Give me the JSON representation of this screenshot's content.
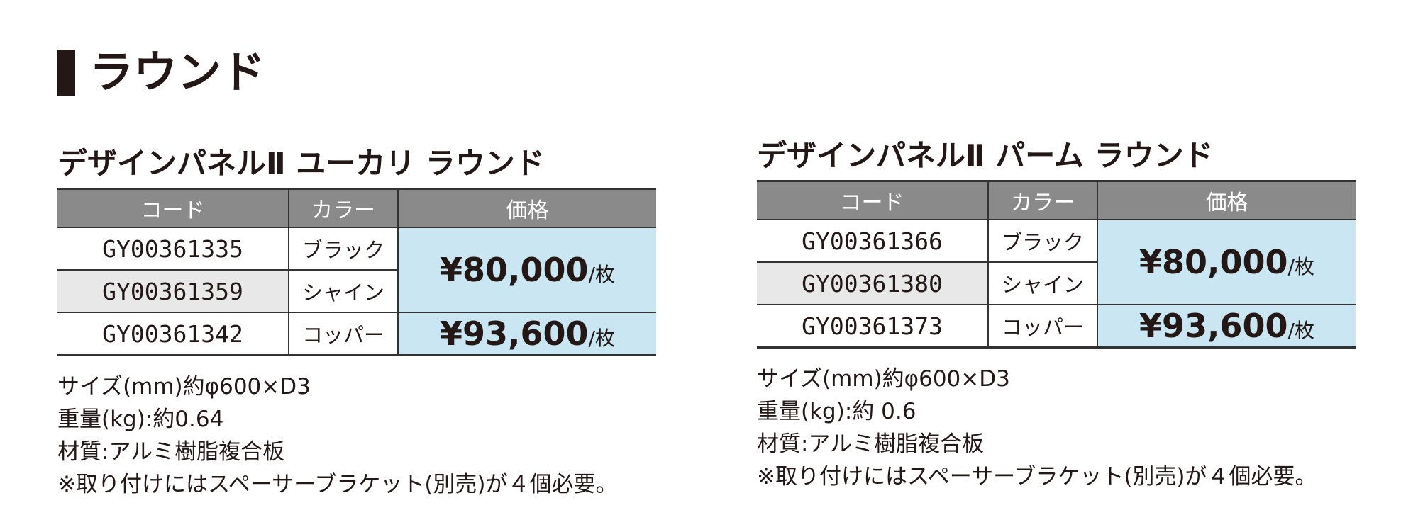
{
  "heading": "ラウンド",
  "products": [
    {
      "title": "デザインパネルⅡ ユーカリ ラウンド",
      "header": [
        "コード",
        "カラー",
        "価格"
      ],
      "rows": [
        {
          "code": "GY00361335",
          "color": "ブラック"
        },
        {
          "code": "GY00361359",
          "color": "シャイン"
        },
        {
          "code": "GY00361342",
          "color": "コッパー"
        }
      ],
      "prices": [
        {
          "price": "¥80,000",
          "unit": "/枚"
        },
        {
          "price": "¥93,600",
          "unit": "/枚"
        }
      ],
      "notes": [
        "サイズ(mm)約φ600×D3",
        "重量(kg):約0.64",
        "材質:アルミ樹脂複合板",
        "※取り付けにはスペーサーブラケット(別売)が４個必要。"
      ]
    },
    {
      "title": "デザインパネルⅡ パーム ラウンド",
      "header": [
        "コード",
        "カラー",
        "価格"
      ],
      "rows": [
        {
          "code": "GY00361366",
          "color": "ブラック"
        },
        {
          "code": "GY00361380",
          "color": "シャイン"
        },
        {
          "code": "GY00361373",
          "color": "コッパー"
        }
      ],
      "prices": [
        {
          "price": "¥80,000",
          "unit": "/枚"
        },
        {
          "price": "¥93,600",
          "unit": "/枚"
        }
      ],
      "notes": [
        "サイズ(mm)約φ600×D3",
        "重量(kg):約 0.6",
        "材質:アルミ樹脂複合板",
        "※取り付けにはスペーサーブラケット(別売)が４個必要。"
      ]
    }
  ]
}
